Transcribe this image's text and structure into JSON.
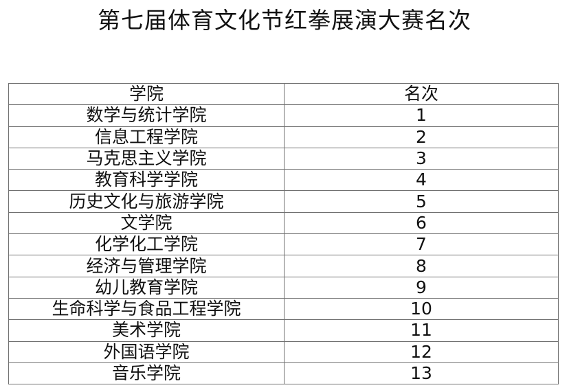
{
  "title": "第七届体育文化节红拳展演大赛名次",
  "table": {
    "headers": [
      "学院",
      "名次"
    ],
    "rows": [
      [
        "数学与统计学院",
        "1"
      ],
      [
        "信息工程学院",
        "2"
      ],
      [
        "马克思主义学院",
        "3"
      ],
      [
        "教育科学学院",
        "4"
      ],
      [
        "历史文化与旅游学院",
        "5"
      ],
      [
        "文学院",
        "6"
      ],
      [
        "化学化工学院",
        "7"
      ],
      [
        "经济与管理学院",
        "8"
      ],
      [
        "幼儿教育学院",
        "9"
      ],
      [
        "生命科学与食品工程学院",
        "10"
      ],
      [
        "美术学院",
        "11"
      ],
      [
        "外国语学院",
        "12"
      ],
      [
        "音乐学院",
        "13"
      ]
    ]
  }
}
